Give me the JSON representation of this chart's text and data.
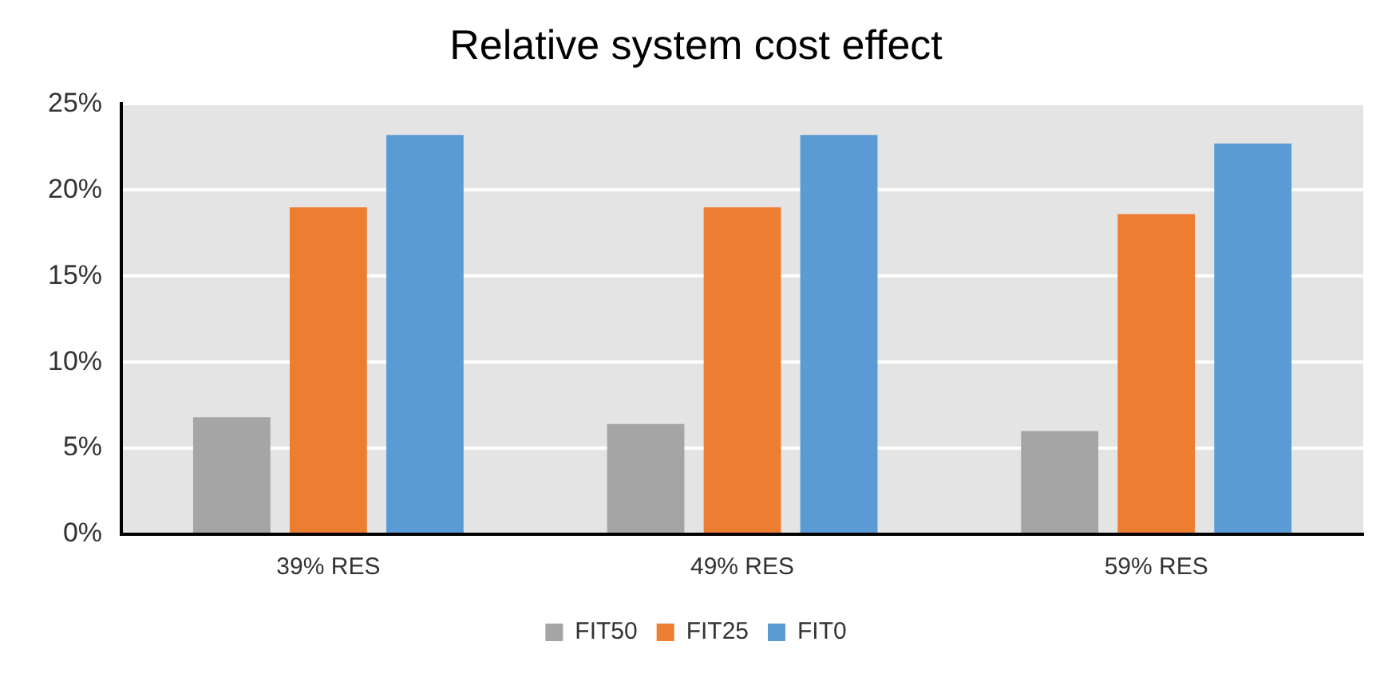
{
  "chart_data": {
    "type": "bar",
    "title": "Relative system cost effect",
    "categories": [
      "39% RES",
      "49% RES",
      "59% RES"
    ],
    "series": [
      {
        "name": "FIT50",
        "color": "#a5a5a5",
        "values": [
          6.8,
          6.4,
          6.0
        ]
      },
      {
        "name": "FIT25",
        "color": "#ed7d31",
        "values": [
          19.0,
          19.0,
          18.6
        ]
      },
      {
        "name": "FIT0",
        "color": "#5b9bd5",
        "values": [
          23.2,
          23.2,
          22.7
        ]
      }
    ],
    "ylim": [
      0,
      25
    ],
    "yticks": [
      {
        "value": 0,
        "label": "0%"
      },
      {
        "value": 5,
        "label": "5%"
      },
      {
        "value": 10,
        "label": "10%"
      },
      {
        "value": 15,
        "label": "15%"
      },
      {
        "value": 20,
        "label": "20%"
      },
      {
        "value": 25,
        "label": "25%"
      }
    ],
    "grid": "y",
    "legend": "bottom"
  }
}
